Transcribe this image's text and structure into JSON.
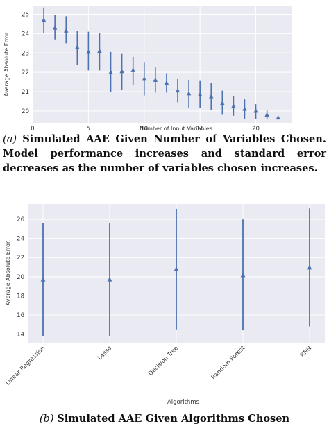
{
  "captions": {
    "a_label": "(a)",
    "a_text": "Simulated AAE Given Number of Variables Chosen. Model performance increases and standard error decreases as the number of variables chosen increases.",
    "b_label": "(b)",
    "b_text": "Simulated AAE Given Algorithms Chosen"
  },
  "colors": {
    "marker": "#4c72b0",
    "plot_bg": "#eaeaf2",
    "grid": "#ffffff"
  },
  "chart_data": [
    {
      "type": "scatter",
      "error_bars": true,
      "xlabel": "Number of Input Variables",
      "ylabel": "Average Absolute Error",
      "xlim": [
        0,
        23.2
      ],
      "ylim": [
        19.35,
        25.45
      ],
      "xticks": [
        0,
        5,
        10,
        15,
        20
      ],
      "yticks": [
        20,
        21,
        22,
        23,
        24,
        25
      ],
      "grid": true,
      "points": [
        {
          "x": 1,
          "y": 24.7,
          "low": 24.05,
          "high": 25.35
        },
        {
          "x": 2,
          "y": 24.3,
          "low": 23.7,
          "high": 24.95
        },
        {
          "x": 3,
          "y": 24.15,
          "low": 23.5,
          "high": 24.9
        },
        {
          "x": 4,
          "y": 23.3,
          "low": 22.4,
          "high": 24.15
        },
        {
          "x": 5,
          "y": 23.05,
          "low": 22.1,
          "high": 24.1
        },
        {
          "x": 6,
          "y": 23.1,
          "low": 22.1,
          "high": 24.05
        },
        {
          "x": 7,
          "y": 22.0,
          "low": 21.0,
          "high": 23.05
        },
        {
          "x": 8,
          "y": 22.05,
          "low": 21.1,
          "high": 22.95
        },
        {
          "x": 9,
          "y": 22.1,
          "low": 21.35,
          "high": 22.8
        },
        {
          "x": 10,
          "y": 21.65,
          "low": 20.8,
          "high": 22.5
        },
        {
          "x": 11,
          "y": 21.6,
          "low": 20.95,
          "high": 22.25
        },
        {
          "x": 12,
          "y": 21.45,
          "low": 20.95,
          "high": 21.95
        },
        {
          "x": 13,
          "y": 21.05,
          "low": 20.45,
          "high": 21.65
        },
        {
          "x": 14,
          "y": 20.9,
          "low": 20.15,
          "high": 21.6
        },
        {
          "x": 15,
          "y": 20.85,
          "low": 20.15,
          "high": 21.55
        },
        {
          "x": 16,
          "y": 20.75,
          "low": 20.05,
          "high": 21.45
        },
        {
          "x": 17,
          "y": 20.4,
          "low": 19.8,
          "high": 21.05
        },
        {
          "x": 18,
          "y": 20.25,
          "low": 19.75,
          "high": 20.75
        },
        {
          "x": 19,
          "y": 20.1,
          "low": 19.6,
          "high": 20.6
        },
        {
          "x": 20,
          "y": 20.0,
          "low": 19.6,
          "high": 20.35
        },
        {
          "x": 21,
          "y": 19.8,
          "low": 19.6,
          "high": 20.05
        },
        {
          "x": 22,
          "y": 19.65,
          "low": 19.6,
          "high": 19.7
        }
      ]
    },
    {
      "type": "scatter",
      "error_bars": true,
      "xlabel": "Algorithms",
      "ylabel": "Average Absolute Error",
      "categories": [
        "Linear Regression",
        "Lasso",
        "Decision Tree",
        "Random Forest",
        "KNN"
      ],
      "values": [
        19.7,
        19.7,
        20.8,
        20.15,
        20.95
      ],
      "low": [
        13.8,
        13.8,
        14.5,
        14.4,
        14.8
      ],
      "high": [
        25.6,
        25.6,
        27.1,
        26.0,
        27.15
      ],
      "ylim": [
        13.1,
        27.6
      ],
      "yticks": [
        14,
        16,
        18,
        20,
        22,
        24,
        26
      ],
      "grid": true
    }
  ]
}
